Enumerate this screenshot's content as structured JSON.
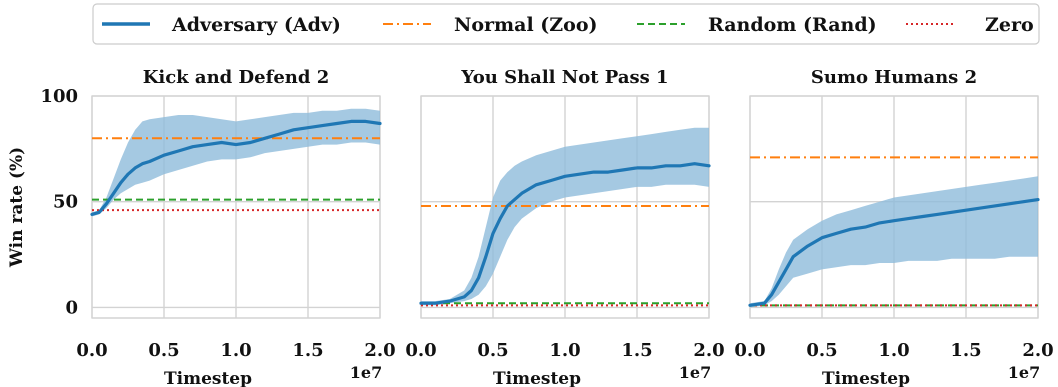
{
  "chart_data": {
    "type": "line",
    "legend": {
      "placement": "top",
      "entries": [
        {
          "label": "Adversary (Adv)",
          "color": "#1f77b4",
          "style": "solid"
        },
        {
          "label": "Normal (Zoo)",
          "color": "#ff7f0e",
          "style": "dashdot"
        },
        {
          "label": "Random (Rand)",
          "color": "#2ca02c",
          "style": "dashed"
        },
        {
          "label": "Zero",
          "color": "#d62728",
          "style": "dotted"
        }
      ]
    },
    "ylabel": "Win rate (%)",
    "xlabel": "Timestep",
    "x_multiplier": "1e7",
    "xlim": [
      0,
      2.0
    ],
    "ylim": [
      -5,
      100
    ],
    "xticks": [
      "0.0",
      "0.5",
      "1.0",
      "1.5",
      "2.0"
    ],
    "yticks": [
      "0",
      "50",
      "100"
    ],
    "grid": true,
    "colors": {
      "adv": "#1f77b4",
      "band": "#8fbbdb",
      "zoo": "#ff7f0e",
      "rand": "#2ca02c",
      "zero": "#d62728"
    },
    "panels": [
      {
        "title": "Kick and Defend 2",
        "zoo": 80,
        "rand": 51,
        "zero": 46,
        "adversary": {
          "x": [
            0.0,
            0.05,
            0.1,
            0.15,
            0.2,
            0.25,
            0.3,
            0.35,
            0.4,
            0.5,
            0.6,
            0.7,
            0.8,
            0.9,
            1.0,
            1.1,
            1.2,
            1.3,
            1.4,
            1.5,
            1.6,
            1.7,
            1.8,
            1.9,
            2.0
          ],
          "y": [
            44,
            45,
            49,
            54,
            59,
            63,
            66,
            68,
            69,
            72,
            74,
            76,
            77,
            78,
            77,
            78,
            80,
            82,
            84,
            85,
            86,
            87,
            88,
            88,
            87
          ],
          "lower": [
            43,
            44,
            47,
            51,
            54,
            56,
            58,
            59,
            60,
            63,
            65,
            67,
            69,
            70,
            70,
            71,
            73,
            74,
            75,
            76,
            77,
            77,
            78,
            78,
            77
          ],
          "upper": [
            45,
            46,
            52,
            61,
            70,
            78,
            84,
            88,
            89,
            90,
            91,
            91,
            90,
            89,
            88,
            89,
            90,
            91,
            92,
            92,
            93,
            93,
            94,
            94,
            93
          ]
        }
      },
      {
        "title": "You Shall Not Pass 1",
        "zoo": 48,
        "rand": 2,
        "zero": 1,
        "adversary": {
          "x": [
            0.0,
            0.1,
            0.2,
            0.3,
            0.35,
            0.4,
            0.45,
            0.5,
            0.55,
            0.6,
            0.65,
            0.7,
            0.8,
            0.9,
            1.0,
            1.1,
            1.2,
            1.3,
            1.4,
            1.5,
            1.6,
            1.7,
            1.8,
            1.9,
            2.0
          ],
          "y": [
            2,
            2,
            3,
            5,
            8,
            14,
            24,
            35,
            42,
            48,
            51,
            54,
            58,
            60,
            62,
            63,
            64,
            64,
            65,
            66,
            66,
            67,
            67,
            68,
            67
          ],
          "lower": [
            1,
            1,
            2,
            3,
            4,
            6,
            10,
            16,
            24,
            32,
            38,
            42,
            47,
            50,
            52,
            53,
            54,
            55,
            56,
            57,
            57,
            58,
            58,
            58,
            57
          ],
          "upper": [
            3,
            3,
            4,
            8,
            14,
            24,
            38,
            52,
            60,
            64,
            67,
            69,
            72,
            74,
            76,
            77,
            78,
            79,
            80,
            81,
            82,
            83,
            84,
            85,
            85
          ]
        }
      },
      {
        "title": "Sumo Humans 2",
        "zoo": 71,
        "rand": 1,
        "zero": 1,
        "adversary": {
          "x": [
            0.0,
            0.1,
            0.15,
            0.2,
            0.25,
            0.3,
            0.4,
            0.5,
            0.6,
            0.7,
            0.8,
            0.9,
            1.0,
            1.1,
            1.2,
            1.3,
            1.4,
            1.5,
            1.6,
            1.7,
            1.8,
            1.9,
            2.0
          ],
          "y": [
            1,
            2,
            6,
            12,
            18,
            24,
            29,
            33,
            35,
            37,
            38,
            40,
            41,
            42,
            43,
            44,
            45,
            46,
            47,
            48,
            49,
            50,
            51
          ],
          "lower": [
            0,
            1,
            3,
            6,
            10,
            14,
            16,
            18,
            19,
            20,
            20,
            21,
            21,
            22,
            22,
            22,
            23,
            23,
            23,
            23,
            24,
            24,
            24
          ],
          "upper": [
            2,
            3,
            9,
            18,
            26,
            32,
            37,
            41,
            44,
            46,
            48,
            50,
            52,
            53,
            54,
            55,
            56,
            57,
            58,
            59,
            60,
            61,
            62
          ]
        }
      }
    ]
  }
}
